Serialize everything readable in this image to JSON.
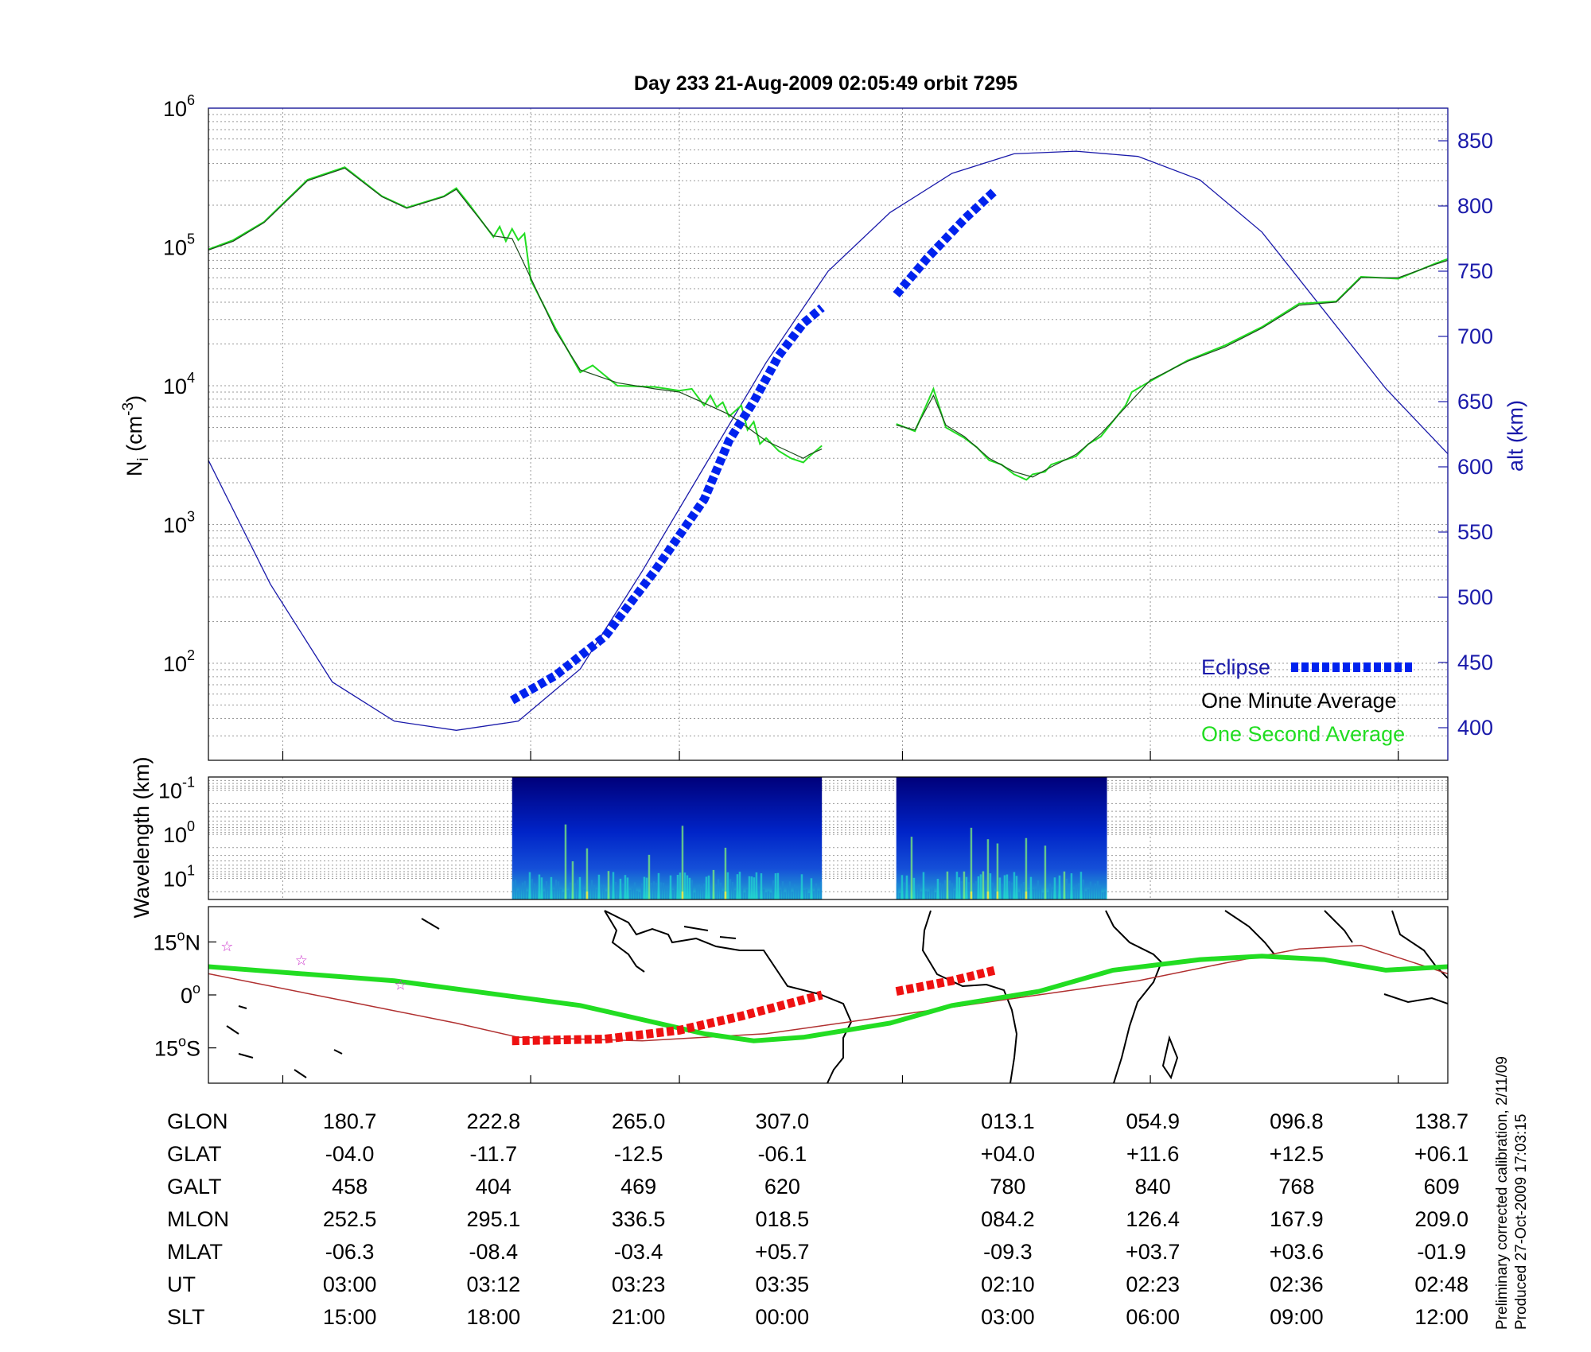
{
  "title": "Day 233  21-Aug-2009 02:05:49   orbit 7295",
  "colors": {
    "one_second": "#22dd22",
    "one_minute": "#1a4a1a",
    "altitude": "#1a1aaa",
    "eclipse": "#0022ee",
    "eclipse_map": "#ee1111",
    "map_track": "#22dd22",
    "magnetic_equator": "#b03030",
    "star": "#cc33cc",
    "axis_right": "#1a1aaa"
  },
  "chart_data": [
    {
      "type": "line",
      "panel": "density-altitude",
      "ylabel": "N_i (cm^-3)",
      "ylabel_parts": {
        "base": "N",
        "sub": "i",
        "unit": " (cm",
        "sup": "-3",
        "close": ")"
      },
      "yscale": "log",
      "ylim": [
        20,
        1000000
      ],
      "y_ticks": [
        {
          "base": "10",
          "exp": "2",
          "value": 100
        },
        {
          "base": "10",
          "exp": "3",
          "value": 1000
        },
        {
          "base": "10",
          "exp": "4",
          "value": 10000
        },
        {
          "base": "10",
          "exp": "5",
          "value": 100000
        },
        {
          "base": "10",
          "exp": "6",
          "value": 1000000
        }
      ],
      "y2label": "alt (km)",
      "y2lim": [
        375,
        875
      ],
      "y2_ticks": [
        400,
        450,
        500,
        550,
        600,
        650,
        700,
        750,
        800,
        850
      ],
      "grid": true,
      "legend": {
        "placement": "bottom-right",
        "entries": [
          "Eclipse",
          "One Minute Average",
          "One Second Average"
        ]
      },
      "series": [
        {
          "name": "One Minute Average",
          "segments": [
            [
              [
                0,
                95000
              ],
              [
                0.2,
                110000
              ],
              [
                0.45,
                150000
              ],
              [
                0.8,
                300000
              ],
              [
                1.1,
                370000
              ],
              [
                1.4,
                230000
              ],
              [
                1.6,
                190000
              ],
              [
                1.9,
                230000
              ],
              [
                2.0,
                260000
              ],
              [
                2.1,
                200000
              ],
              [
                2.3,
                120000
              ],
              [
                2.45,
                115000
              ],
              [
                2.6,
                60000
              ],
              [
                2.8,
                25000
              ],
              [
                3.0,
                13000
              ],
              [
                3.3,
                10500
              ],
              [
                3.6,
                9500
              ],
              [
                3.8,
                9000
              ],
              [
                4.0,
                7500
              ],
              [
                4.2,
                6200
              ],
              [
                4.35,
                5000
              ],
              [
                4.5,
                4000
              ],
              [
                4.7,
                3300
              ],
              [
                4.8,
                3000
              ],
              [
                4.85,
                3200
              ],
              [
                4.95,
                3500
              ]
            ],
            [
              [
                5.55,
                5200
              ],
              [
                5.7,
                4800
              ],
              [
                5.85,
                8500
              ],
              [
                5.95,
                5200
              ],
              [
                6.1,
                4300
              ],
              [
                6.3,
                3000
              ],
              [
                6.5,
                2400
              ],
              [
                6.65,
                2200
              ],
              [
                6.8,
                2600
              ],
              [
                7.0,
                3200
              ],
              [
                7.2,
                4500
              ],
              [
                7.4,
                7000
              ],
              [
                7.6,
                11000
              ],
              [
                7.9,
                15000
              ],
              [
                8.2,
                19000
              ],
              [
                8.5,
                26000
              ],
              [
                8.8,
                38000
              ],
              [
                9.1,
                40000
              ],
              [
                9.3,
                60000
              ],
              [
                9.6,
                60000
              ],
              [
                9.9,
                75000
              ],
              [
                10.0,
                80000
              ]
            ]
          ]
        },
        {
          "name": "One Second Average",
          "segments": [
            [
              [
                0,
                96000
              ],
              [
                0.2,
                112000
              ],
              [
                0.45,
                152000
              ],
              [
                0.8,
                305000
              ],
              [
                1.1,
                375000
              ],
              [
                1.4,
                232000
              ],
              [
                1.6,
                192000
              ],
              [
                1.9,
                232000
              ],
              [
                2.0,
                265000
              ],
              [
                2.1,
                205000
              ],
              [
                2.3,
                118000
              ],
              [
                2.35,
                140000
              ],
              [
                2.4,
                110000
              ],
              [
                2.45,
                135000
              ],
              [
                2.5,
                112000
              ],
              [
                2.55,
                125000
              ],
              [
                2.6,
                58000
              ],
              [
                2.8,
                26000
              ],
              [
                3.0,
                12500
              ],
              [
                3.1,
                14000
              ],
              [
                3.3,
                10000
              ],
              [
                3.6,
                9800
              ],
              [
                3.8,
                9200
              ],
              [
                3.9,
                9500
              ],
              [
                4.0,
                7200
              ],
              [
                4.05,
                8500
              ],
              [
                4.1,
                7000
              ],
              [
                4.15,
                7600
              ],
              [
                4.2,
                6000
              ],
              [
                4.3,
                7200
              ],
              [
                4.35,
                4800
              ],
              [
                4.4,
                5500
              ],
              [
                4.45,
                3800
              ],
              [
                4.5,
                4200
              ],
              [
                4.6,
                3400
              ],
              [
                4.7,
                3000
              ],
              [
                4.8,
                2800
              ],
              [
                4.85,
                3100
              ],
              [
                4.95,
                3700
              ]
            ],
            [
              [
                5.55,
                5300
              ],
              [
                5.7,
                4700
              ],
              [
                5.8,
                7500
              ],
              [
                5.85,
                9500
              ],
              [
                5.95,
                5000
              ],
              [
                6.1,
                4200
              ],
              [
                6.2,
                3600
              ],
              [
                6.3,
                2900
              ],
              [
                6.4,
                2700
              ],
              [
                6.5,
                2300
              ],
              [
                6.6,
                2100
              ],
              [
                6.65,
                2300
              ],
              [
                6.75,
                2400
              ],
              [
                6.8,
                2700
              ],
              [
                6.9,
                2900
              ],
              [
                7.0,
                3100
              ],
              [
                7.1,
                3800
              ],
              [
                7.2,
                4300
              ],
              [
                7.4,
                7200
              ],
              [
                7.45,
                9000
              ],
              [
                7.6,
                10800
              ],
              [
                7.9,
                15200
              ],
              [
                8.2,
                19500
              ],
              [
                8.5,
                26500
              ],
              [
                8.8,
                39000
              ],
              [
                9.1,
                40500
              ],
              [
                9.3,
                61000
              ],
              [
                9.6,
                59000
              ],
              [
                9.9,
                76000
              ],
              [
                10.0,
                82000
              ]
            ]
          ]
        },
        {
          "name": "Altitude",
          "axis": "right",
          "points": [
            [
              0,
              605
            ],
            [
              0.5,
              510
            ],
            [
              1.0,
              435
            ],
            [
              1.5,
              405
            ],
            [
              2.0,
              398
            ],
            [
              2.5,
              405
            ],
            [
              3.0,
              445
            ],
            [
              3.5,
              520
            ],
            [
              4.0,
              600
            ],
            [
              4.5,
              680
            ],
            [
              5.0,
              750
            ],
            [
              5.5,
              795
            ],
            [
              6.0,
              825
            ],
            [
              6.5,
              840
            ],
            [
              7.0,
              842
            ],
            [
              7.5,
              838
            ],
            [
              8.0,
              820
            ],
            [
              8.5,
              780
            ],
            [
              9.0,
              720
            ],
            [
              9.5,
              660
            ],
            [
              10.0,
              610
            ]
          ]
        },
        {
          "name": "Eclipse",
          "axis": "right",
          "style": "dashed-thick",
          "segments": [
            [
              [
                2.45,
                421
              ],
              [
                2.8,
                440
              ],
              [
                3.2,
                470
              ],
              [
                3.6,
                520
              ],
              [
                4.0,
                575
              ],
              [
                4.2,
                620
              ],
              [
                4.4,
                650
              ],
              [
                4.6,
                685
              ],
              [
                4.8,
                710
              ],
              [
                4.95,
                722
              ]
            ],
            [
              [
                5.55,
                732
              ],
              [
                5.8,
                760
              ],
              [
                6.1,
                790
              ],
              [
                6.35,
                812
              ]
            ]
          ]
        }
      ]
    },
    {
      "type": "heatmap",
      "panel": "spectrogram",
      "ylabel": "Wavelength (km)",
      "yscale": "log",
      "ylim": [
        30,
        0.05
      ],
      "y_ticks": [
        {
          "base": "10",
          "exp": "-1",
          "value": 0.1
        },
        {
          "base": "10",
          "exp": "0",
          "value": 1
        },
        {
          "base": "10",
          "exp": "1",
          "value": 10
        }
      ],
      "blocks": [
        [
          2.45,
          4.95
        ],
        [
          5.55,
          7.25
        ]
      ],
      "colormap": [
        "#00007a",
        "#0024c8",
        "#1e8ad6",
        "#22d4cf",
        "#7ff07a",
        "#e8e84a"
      ]
    },
    {
      "type": "line",
      "panel": "map",
      "y_ticks": [
        {
          "value": 15,
          "label": "15",
          "deg": "o",
          "suffix": "N"
        },
        {
          "value": 0,
          "label": "0",
          "deg": "o",
          "suffix": ""
        },
        {
          "value": -15,
          "label": "15",
          "deg": "o",
          "suffix": "S"
        }
      ],
      "ylim": [
        -25,
        25
      ],
      "series": [
        {
          "name": "track",
          "points": [
            [
              0,
              8
            ],
            [
              1.5,
              4
            ],
            [
              3.0,
              -3
            ],
            [
              4.0,
              -11
            ],
            [
              4.4,
              -13
            ],
            [
              4.8,
              -12
            ],
            [
              5.5,
              -8
            ],
            [
              6.0,
              -3
            ],
            [
              6.7,
              1
            ],
            [
              7.3,
              7
            ],
            [
              8.0,
              10
            ],
            [
              8.5,
              11
            ],
            [
              9.0,
              10
            ],
            [
              9.5,
              7
            ],
            [
              10.0,
              8
            ]
          ]
        },
        {
          "name": "magnetic equator",
          "points": [
            [
              0,
              6
            ],
            [
              1.0,
              -1
            ],
            [
              2.0,
              -8
            ],
            [
              2.5,
              -12
            ],
            [
              3.5,
              -13
            ],
            [
              4.5,
              -11
            ],
            [
              5.5,
              -6
            ],
            [
              6.5,
              -1
            ],
            [
              7.5,
              4
            ],
            [
              8.2,
              9
            ],
            [
              8.8,
              13
            ],
            [
              9.3,
              14
            ],
            [
              10.0,
              6
            ]
          ]
        },
        {
          "name": "eclipse",
          "segments": [
            [
              [
                2.45,
                -13
              ],
              [
                3.2,
                -12.5
              ],
              [
                3.8,
                -10
              ],
              [
                4.3,
                -6
              ],
              [
                4.95,
                0
              ]
            ],
            [
              [
                5.55,
                1
              ],
              [
                6.0,
                4
              ],
              [
                6.35,
                7
              ]
            ]
          ]
        }
      ],
      "stars": [
        [
          0.15,
          14
        ],
        [
          0.75,
          10
        ],
        [
          1.55,
          3
        ]
      ]
    }
  ],
  "table": {
    "rows": [
      {
        "label": "GLON",
        "values": [
          "180.7",
          "222.8",
          "265.0",
          "307.0",
          "013.1",
          "054.9",
          "096.8",
          "138.7"
        ]
      },
      {
        "label": "GLAT",
        "values": [
          "-04.0",
          "-11.7",
          "-12.5",
          "-06.1",
          "+04.0",
          "+11.6",
          "+12.5",
          "+06.1"
        ]
      },
      {
        "label": "GALT",
        "values": [
          "458",
          "404",
          "469",
          "620",
          "780",
          "840",
          "768",
          "609"
        ]
      },
      {
        "label": "MLON",
        "values": [
          "252.5",
          "295.1",
          "336.5",
          "018.5",
          "084.2",
          "126.4",
          "167.9",
          "209.0"
        ]
      },
      {
        "label": "MLAT",
        "values": [
          "-06.3",
          "-08.4",
          "-03.4",
          "+05.7",
          "-09.3",
          "+03.7",
          "+03.6",
          "-01.9"
        ]
      },
      {
        "label": "UT",
        "values": [
          "03:00",
          "03:12",
          "03:23",
          "03:35",
          "02:10",
          "02:23",
          "02:36",
          "02:48"
        ]
      },
      {
        "label": "SLT",
        "values": [
          "15:00",
          "18:00",
          "21:00",
          "00:00",
          "03:00",
          "06:00",
          "09:00",
          "12:00"
        ]
      }
    ]
  },
  "footnote": {
    "line1": "Preliminary corrected calibration, 2/11/09",
    "line2": "Produced 27-Oct-2009 17:03:15"
  }
}
